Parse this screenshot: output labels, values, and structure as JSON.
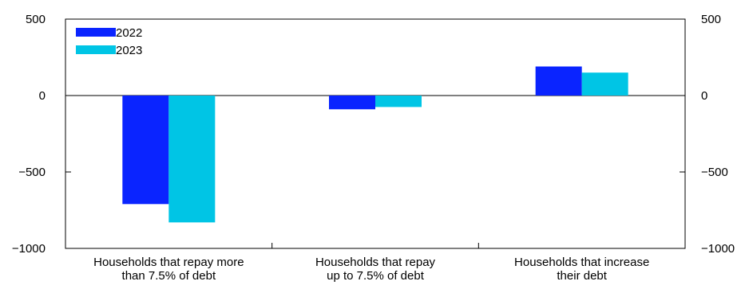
{
  "chart_data": {
    "type": "bar",
    "categories": [
      [
        "Households that repay more",
        "than 7.5% of debt"
      ],
      [
        "Households that repay",
        "up to 7.5% of debt"
      ],
      [
        "Households that increase",
        "their debt"
      ]
    ],
    "series": [
      {
        "name": "2022",
        "color": "#0a24ff",
        "values": [
          -710,
          -90,
          190
        ]
      },
      {
        "name": "2023",
        "color": "#00c5e5",
        "values": [
          -830,
          -75,
          150
        ]
      }
    ],
    "ylim": [
      -1000,
      500
    ],
    "yticks": [
      500,
      0,
      -500,
      -1000
    ],
    "ytick_labels": [
      "500",
      "0",
      "−500",
      "−1000"
    ],
    "legend_position": "top-left",
    "grid": false
  }
}
